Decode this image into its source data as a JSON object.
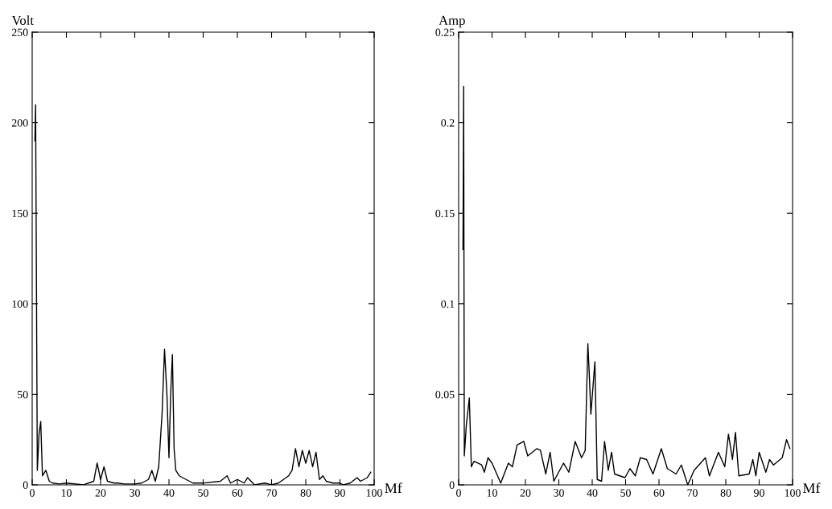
{
  "chart_data": [
    {
      "type": "line",
      "ylabel": "Volt",
      "xlabel": "Mf",
      "xlim": [
        0,
        100
      ],
      "ylim": [
        0,
        250
      ],
      "xticks": [
        0,
        10,
        20,
        30,
        40,
        50,
        60,
        70,
        80,
        90,
        100
      ],
      "yticks": [
        0,
        50,
        100,
        150,
        200,
        250
      ],
      "grid": false,
      "legend": false,
      "series": [
        {
          "color": "#000000",
          "x": [
            0.8,
            1.0,
            1.5,
            2,
            2.5,
            3,
            4,
            5,
            6,
            8,
            10,
            15,
            18,
            19,
            20,
            21,
            22,
            24,
            25,
            27,
            30,
            32,
            34,
            35,
            36,
            37,
            38,
            38.7,
            39.4,
            40,
            40.5,
            41,
            41.5,
            42,
            43,
            44,
            45,
            47,
            50,
            55,
            57,
            58,
            60,
            62,
            63,
            65,
            68,
            70,
            72,
            75,
            76,
            77,
            78,
            79,
            80,
            81,
            82,
            83,
            84,
            85,
            86,
            88,
            90,
            91,
            93,
            95,
            96,
            98,
            99
          ],
          "values": [
            190,
            210,
            8,
            28,
            35,
            5,
            8,
            2,
            1,
            0.5,
            1,
            0,
            2,
            12,
            3,
            10,
            2,
            1,
            1,
            0.5,
            0.5,
            1,
            3,
            8,
            2,
            10,
            40,
            75,
            50,
            15,
            50,
            72,
            20,
            8,
            5,
            4,
            3,
            1,
            1,
            2,
            5,
            1,
            3,
            1,
            4,
            0,
            1,
            0,
            1,
            5,
            8,
            20,
            10,
            19,
            12,
            19,
            10,
            18,
            3,
            5,
            2,
            1,
            1,
            0,
            1,
            4,
            2,
            4,
            7
          ]
        }
      ]
    },
    {
      "type": "line",
      "ylabel": "Amp",
      "xlabel": "Mf",
      "xlim": [
        0,
        100
      ],
      "ylim": [
        0,
        0.25
      ],
      "xticks": [
        0,
        10,
        20,
        30,
        40,
        50,
        60,
        70,
        80,
        90,
        100
      ],
      "yticks": [
        0,
        0.05,
        0.1,
        0.15,
        0.2,
        0.25
      ],
      "grid": false,
      "legend": false,
      "series": [
        {
          "color": "#000000",
          "x": [
            1.3,
            1.5,
            1.7,
            2.3,
            3.2,
            3.8,
            4.6,
            6.9,
            7.7,
            8.8,
            10.0,
            12.6,
            14.9,
            16.1,
            17.5,
            19.5,
            20.7,
            23.4,
            24.5,
            26.1,
            27.4,
            28.5,
            31.4,
            33.0,
            34.9,
            36.8,
            37.9,
            38.7,
            39.1,
            39.6,
            40.8,
            41.5,
            42.8,
            43.7,
            44.8,
            45.8,
            46.7,
            49.8,
            51.3,
            52.9,
            54.4,
            56.3,
            58.2,
            60.7,
            62.5,
            65.1,
            66.7,
            68.6,
            70.5,
            73.9,
            75.1,
            77.8,
            79.7,
            80.8,
            82.0,
            82.9,
            83.9,
            87.0,
            88.1,
            89.0,
            90.0,
            92.0,
            93.1,
            94.3,
            96.9,
            98.2,
            99.2
          ],
          "values": [
            0.13,
            0.22,
            0.016,
            0.033,
            0.048,
            0.01,
            0.013,
            0.011,
            0.007,
            0.015,
            0.012,
            0.001,
            0.012,
            0.01,
            0.022,
            0.024,
            0.016,
            0.02,
            0.019,
            0.006,
            0.018,
            0.002,
            0.012,
            0.007,
            0.024,
            0.015,
            0.019,
            0.078,
            0.062,
            0.039,
            0.068,
            0.003,
            0.002,
            0.024,
            0.008,
            0.018,
            0.006,
            0.004,
            0.009,
            0.005,
            0.015,
            0.014,
            0.006,
            0.02,
            0.009,
            0.006,
            0.011,
            0.0,
            0.008,
            0.015,
            0.005,
            0.018,
            0.01,
            0.028,
            0.014,
            0.029,
            0.005,
            0.006,
            0.014,
            0.005,
            0.018,
            0.007,
            0.014,
            0.011,
            0.015,
            0.025,
            0.02
          ]
        }
      ]
    }
  ]
}
